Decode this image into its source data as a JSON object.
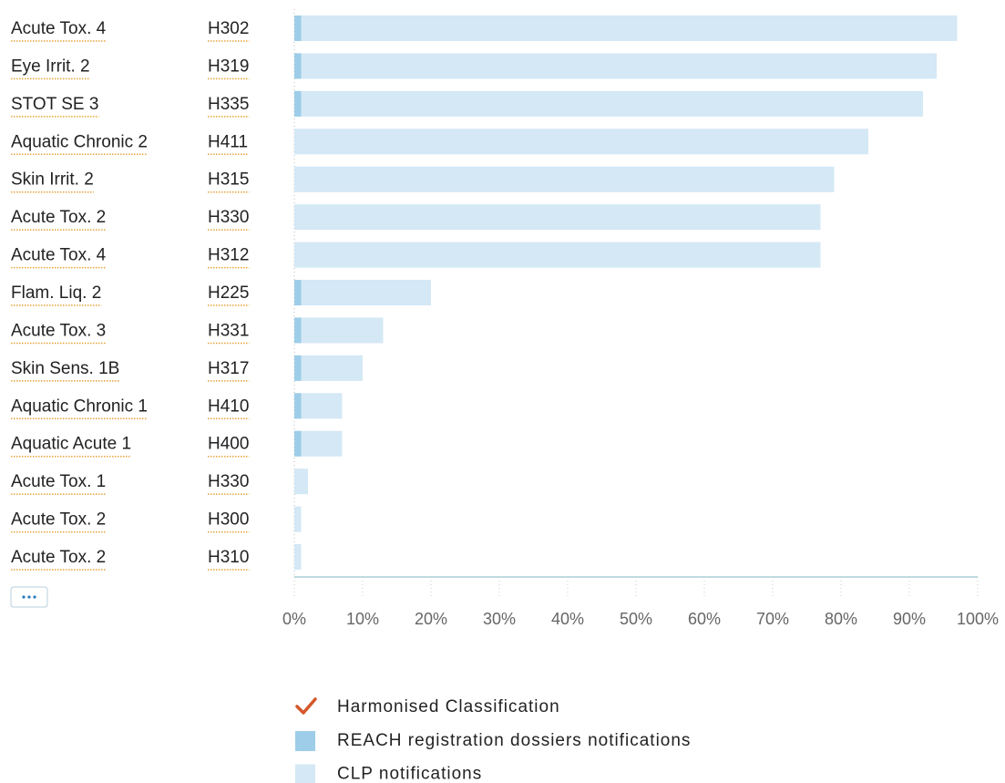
{
  "chart_data": {
    "type": "bar",
    "orientation": "horizontal",
    "categories": [
      "Acute Tox. 4",
      "Eye Irrit. 2",
      "STOT SE 3",
      "Aquatic Chronic 2",
      "Skin Irrit. 2",
      "Acute Tox. 2",
      "Acute Tox. 4",
      "Flam. Liq. 2",
      "Acute Tox. 3",
      "Skin Sens. 1B",
      "Aquatic Chronic 1",
      "Aquatic Acute 1",
      "Acute Tox. 1",
      "Acute Tox. 2",
      "Acute Tox. 2"
    ],
    "codes": [
      "H302",
      "H319",
      "H335",
      "H411",
      "H315",
      "H330",
      "H312",
      "H225",
      "H331",
      "H317",
      "H410",
      "H400",
      "H330",
      "H300",
      "H310"
    ],
    "series": [
      {
        "name": "CLP notifications",
        "color": "#d4e8f5",
        "values": [
          97,
          94,
          92,
          84,
          79,
          77,
          77,
          20,
          13,
          10,
          7,
          7,
          2,
          1,
          1
        ]
      },
      {
        "name": "REACH registration dossiers notifications",
        "color": "#9dcde8",
        "values": [
          1,
          1,
          1,
          null,
          null,
          null,
          null,
          1,
          1,
          1,
          1,
          1,
          null,
          null,
          null
        ]
      }
    ],
    "legend_marker": {
      "name": "Harmonised Classification",
      "color": "#d4572a"
    },
    "xlim": [
      0,
      100
    ],
    "xticks": [
      {
        "value": 0,
        "label": "0%"
      },
      {
        "value": 10,
        "label": "10%"
      },
      {
        "value": 20,
        "label": "20%"
      },
      {
        "value": 30,
        "label": "30%"
      },
      {
        "value": 40,
        "label": "40%"
      },
      {
        "value": 50,
        "label": "50%"
      },
      {
        "value": 60,
        "label": "60%"
      },
      {
        "value": 70,
        "label": "70%"
      },
      {
        "value": 80,
        "label": "80%"
      },
      {
        "value": 90,
        "label": "90%"
      },
      {
        "value": 100,
        "label": "100%"
      }
    ]
  }
}
